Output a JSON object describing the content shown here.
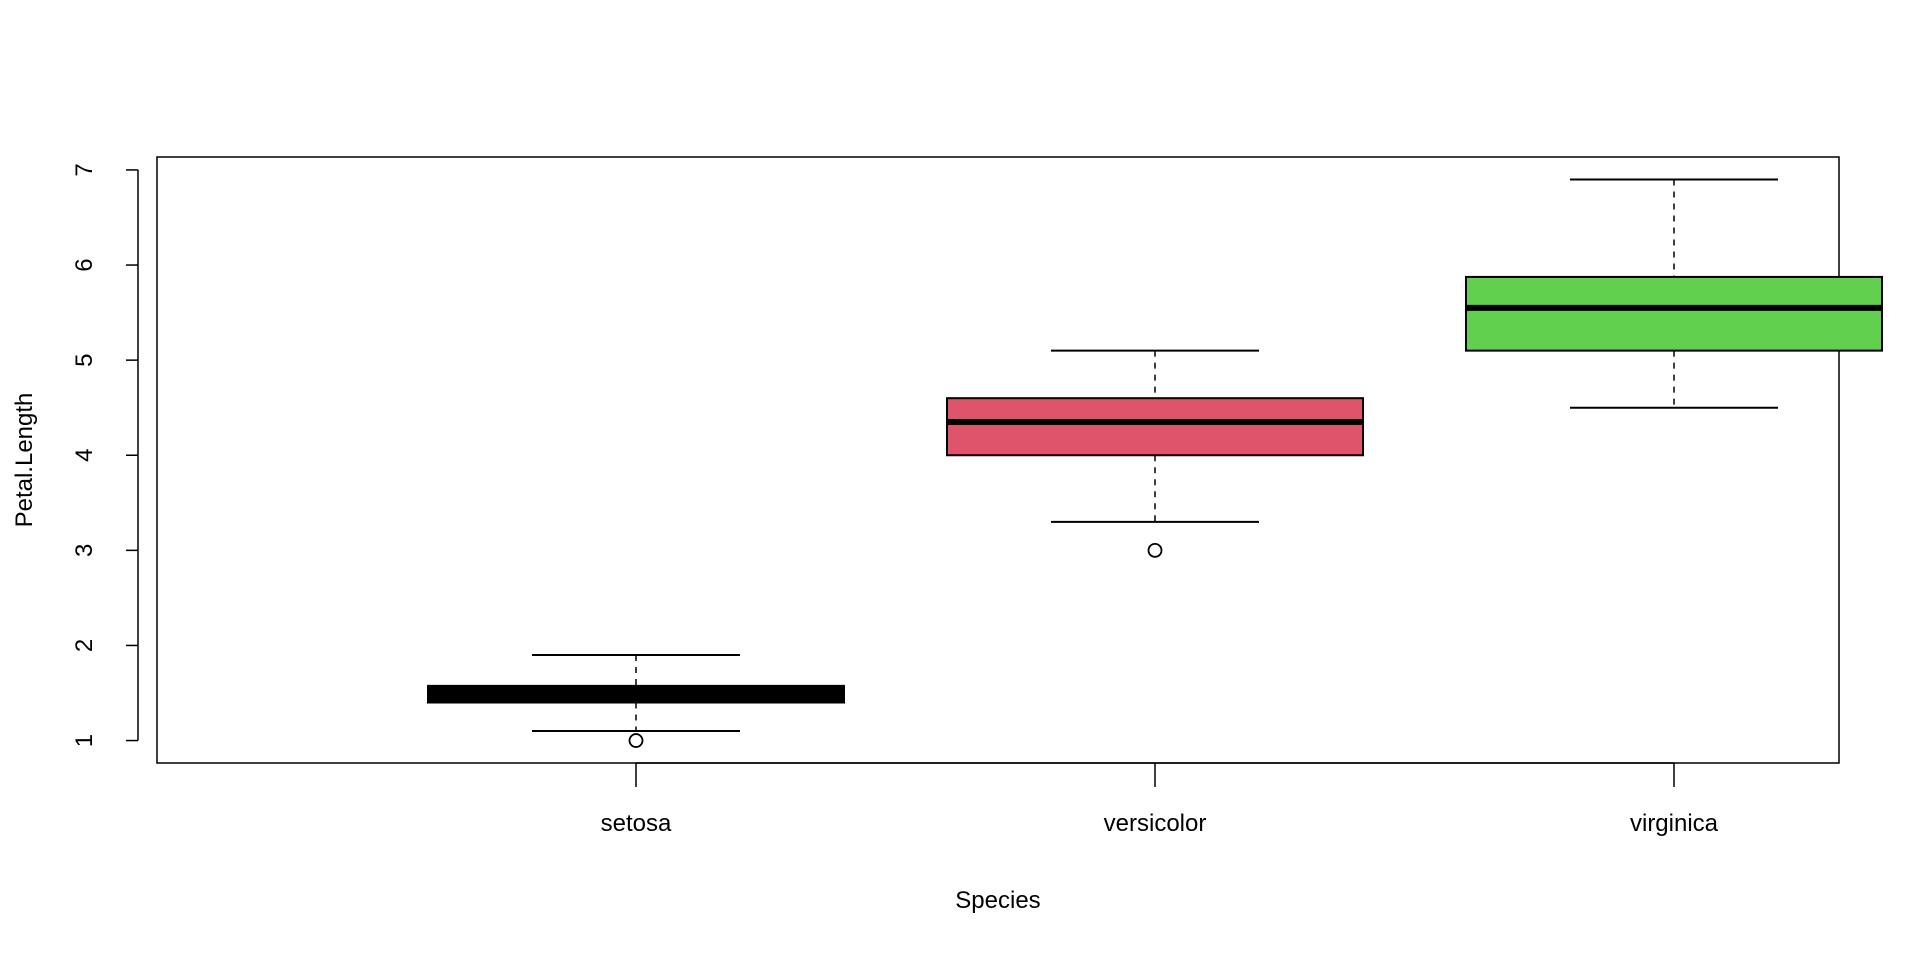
{
  "chart_data": {
    "type": "boxplot",
    "title": "",
    "xlabel": "Species",
    "ylabel": "Petal.Length",
    "ylim": [
      0.764,
      7.136
    ],
    "yticks": [
      1,
      2,
      3,
      4,
      5,
      6,
      7
    ],
    "ytick_labels": [
      "1",
      "2",
      "3",
      "4",
      "5",
      "6",
      "7"
    ],
    "categories": [
      "setosa",
      "versicolor",
      "virginica"
    ],
    "grid": false,
    "legend": "none",
    "boxes": [
      {
        "name": "setosa",
        "whisker_low": 1.1,
        "q1": 1.4,
        "median": 1.5,
        "q3": 1.575,
        "whisker_high": 1.9,
        "outliers": [
          1.0
        ],
        "color": "#000000"
      },
      {
        "name": "versicolor",
        "whisker_low": 3.3,
        "q1": 4.0,
        "median": 4.35,
        "q3": 4.6,
        "whisker_high": 5.1,
        "outliers": [
          3.0
        ],
        "color": "#DF536B"
      },
      {
        "name": "virginica",
        "whisker_low": 4.5,
        "q1": 5.1,
        "median": 5.55,
        "q3": 5.875,
        "whisker_high": 6.9,
        "outliers": [],
        "color": "#61D04F"
      }
    ]
  }
}
